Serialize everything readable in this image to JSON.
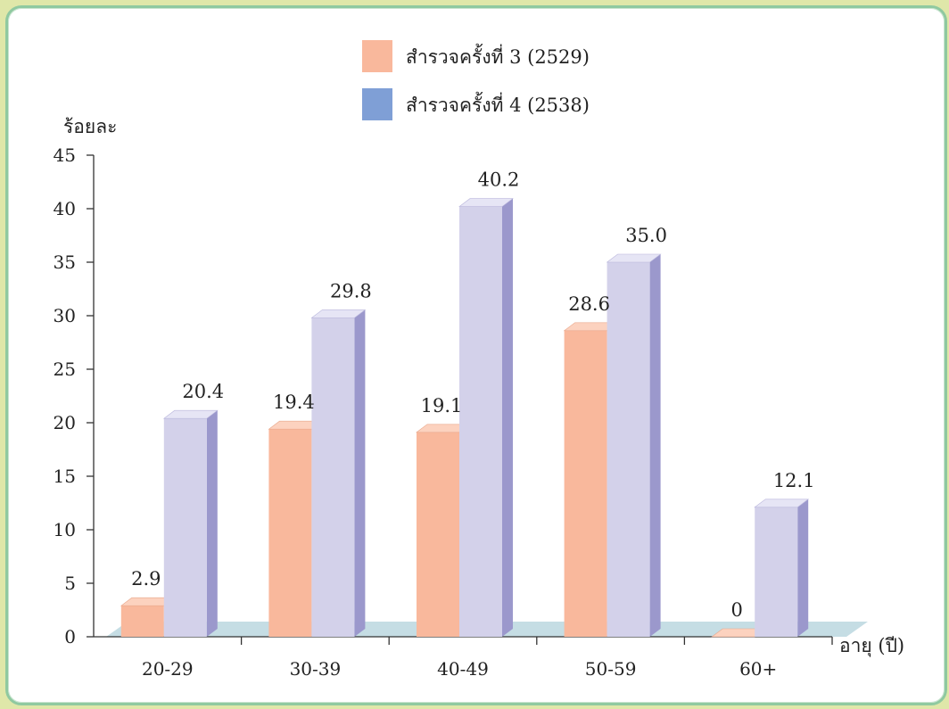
{
  "chart_data": {
    "type": "bar",
    "ylabel": "ร้อยละ",
    "xlabel": "อายุ (ปี)",
    "ylim": [
      0,
      45
    ],
    "yticks": [
      0,
      5,
      10,
      15,
      20,
      25,
      30,
      35,
      40,
      45
    ],
    "categories": [
      "20-29",
      "30-39",
      "40-49",
      "50-59",
      "60+"
    ],
    "legend_position": "top-center",
    "three_d": true,
    "series": [
      {
        "name": "สำรวจครั้งที่ 3 (2529)",
        "values": [
          2.9,
          19.4,
          19.1,
          28.6,
          0
        ],
        "labels": [
          "2.9",
          "19.4",
          "19.1",
          "28.6",
          "0"
        ],
        "color": "#f9b89c",
        "top_color": "#fcd2bf"
      },
      {
        "name": "สำรวจครั้งที่ 4 (2538)",
        "values": [
          20.4,
          29.8,
          40.2,
          35.0,
          12.1
        ],
        "labels": [
          "20.4",
          "29.8",
          "40.2",
          "35.0",
          "12.1"
        ],
        "color": "#d3d1ea",
        "top_color": "#e6e5f5",
        "side_color": "#9b98cc",
        "legend_color": "#7f9fd6"
      }
    ],
    "floor_color": "#c5dde4"
  }
}
